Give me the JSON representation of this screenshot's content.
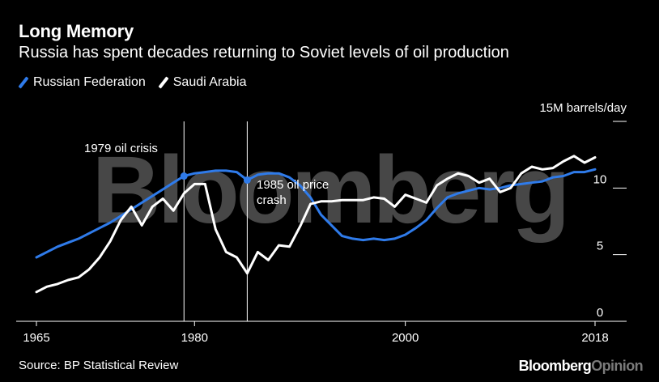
{
  "header": {
    "title": "Long Memory",
    "subtitle": "Russia has spent decades returning to Soviet levels of oil production"
  },
  "legend": [
    {
      "label": "Russian Federation",
      "color": "#2f7bea"
    },
    {
      "label": "Saudi Arabia",
      "color": "#ffffff"
    }
  ],
  "footer": {
    "source": "Source: BP Statistical Review",
    "brand_main": "Bloomberg",
    "brand_sub": "Opinion"
  },
  "watermark": "Bloomberg",
  "chart_data": {
    "type": "line",
    "title": "Long Memory",
    "ylabel": "15M barrels/day",
    "y_unit_label": "15M barrels/day",
    "ylim": [
      0,
      15
    ],
    "xlim": [
      1965,
      2018
    ],
    "yticks": [
      "0",
      "5",
      "10"
    ],
    "xticks": [
      "1965",
      "1980",
      "2000",
      "2018"
    ],
    "annotations": [
      {
        "x": 1979,
        "label": "1979 oil crisis"
      },
      {
        "x": 1985,
        "label_lines": [
          "1985 oil price",
          "crash"
        ]
      }
    ],
    "x": [
      1965,
      1966,
      1967,
      1968,
      1969,
      1970,
      1971,
      1972,
      1973,
      1974,
      1975,
      1976,
      1977,
      1978,
      1979,
      1980,
      1981,
      1982,
      1983,
      1984,
      1985,
      1986,
      1987,
      1988,
      1989,
      1990,
      1991,
      1992,
      1993,
      1994,
      1995,
      1996,
      1997,
      1998,
      1999,
      2000,
      2001,
      2002,
      2003,
      2004,
      2005,
      2006,
      2007,
      2008,
      2009,
      2010,
      2011,
      2012,
      2013,
      2014,
      2015,
      2016,
      2017,
      2018
    ],
    "series": [
      {
        "name": "Russian Federation",
        "color": "#2f7bea",
        "values": [
          4.8,
          5.2,
          5.6,
          5.9,
          6.2,
          6.6,
          7.0,
          7.4,
          7.9,
          8.4,
          8.9,
          9.4,
          9.9,
          10.4,
          10.9,
          11.1,
          11.2,
          11.3,
          11.3,
          11.2,
          10.6,
          11.0,
          11.1,
          11.1,
          10.8,
          10.2,
          9.3,
          8.0,
          7.2,
          6.4,
          6.2,
          6.1,
          6.2,
          6.1,
          6.2,
          6.5,
          7.0,
          7.6,
          8.5,
          9.3,
          9.6,
          9.8,
          10.0,
          9.9,
          10.0,
          10.2,
          10.3,
          10.4,
          10.5,
          10.8,
          10.9,
          11.2,
          11.2,
          11.4
        ]
      },
      {
        "name": "Saudi Arabia",
        "color": "#ffffff",
        "values": [
          2.2,
          2.6,
          2.8,
          3.1,
          3.3,
          3.9,
          4.8,
          6.0,
          7.6,
          8.6,
          7.2,
          8.6,
          9.2,
          8.3,
          9.6,
          10.3,
          10.3,
          6.9,
          5.2,
          4.8,
          3.6,
          5.2,
          4.6,
          5.7,
          5.6,
          7.1,
          8.8,
          9.0,
          9.0,
          9.1,
          9.1,
          9.1,
          9.3,
          9.2,
          8.6,
          9.5,
          9.2,
          8.9,
          10.2,
          10.7,
          11.1,
          10.9,
          10.4,
          10.7,
          9.7,
          10.0,
          11.1,
          11.6,
          11.4,
          11.5,
          12.0,
          12.4,
          11.9,
          12.3
        ]
      }
    ]
  }
}
